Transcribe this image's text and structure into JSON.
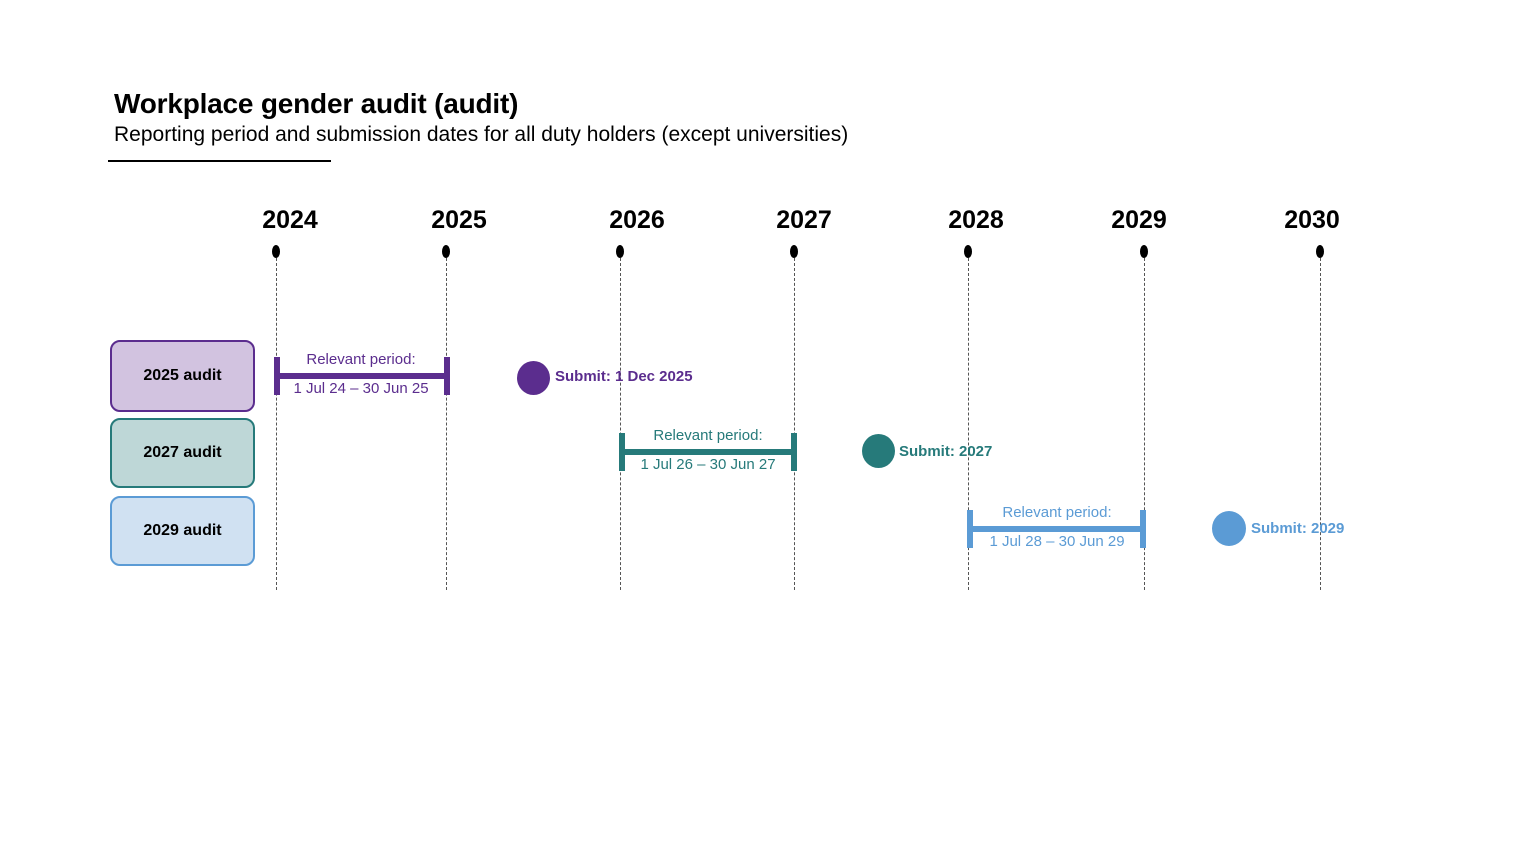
{
  "title": "Workplace gender audit (audit)",
  "subtitle": "Reporting period and submission dates for all duty holders (except universities)",
  "years": [
    "2024",
    "2025",
    "2026",
    "2027",
    "2028",
    "2029",
    "2030"
  ],
  "audits": [
    {
      "label": "2025 audit",
      "period_title": "Relevant period:",
      "period_dates": "1 Jul 24 – 30 Jun 25",
      "submit": "Submit: 1 Dec 2025",
      "color": "#5b2d8e",
      "box_fill": "#d2c3e0"
    },
    {
      "label": "2027 audit",
      "period_title": "Relevant period:",
      "period_dates": "1 Jul 26 – 30 Jun 27",
      "submit": "Submit: 2027",
      "color": "#267a7a",
      "box_fill": "#bed7d7"
    },
    {
      "label": "2029 audit",
      "period_title": "Relevant period:",
      "period_dates": "1 Jul 28 – 30 Jun 29",
      "submit": "Submit: 2029",
      "color": "#5b9bd5",
      "box_fill": "#d0e1f2"
    }
  ]
}
